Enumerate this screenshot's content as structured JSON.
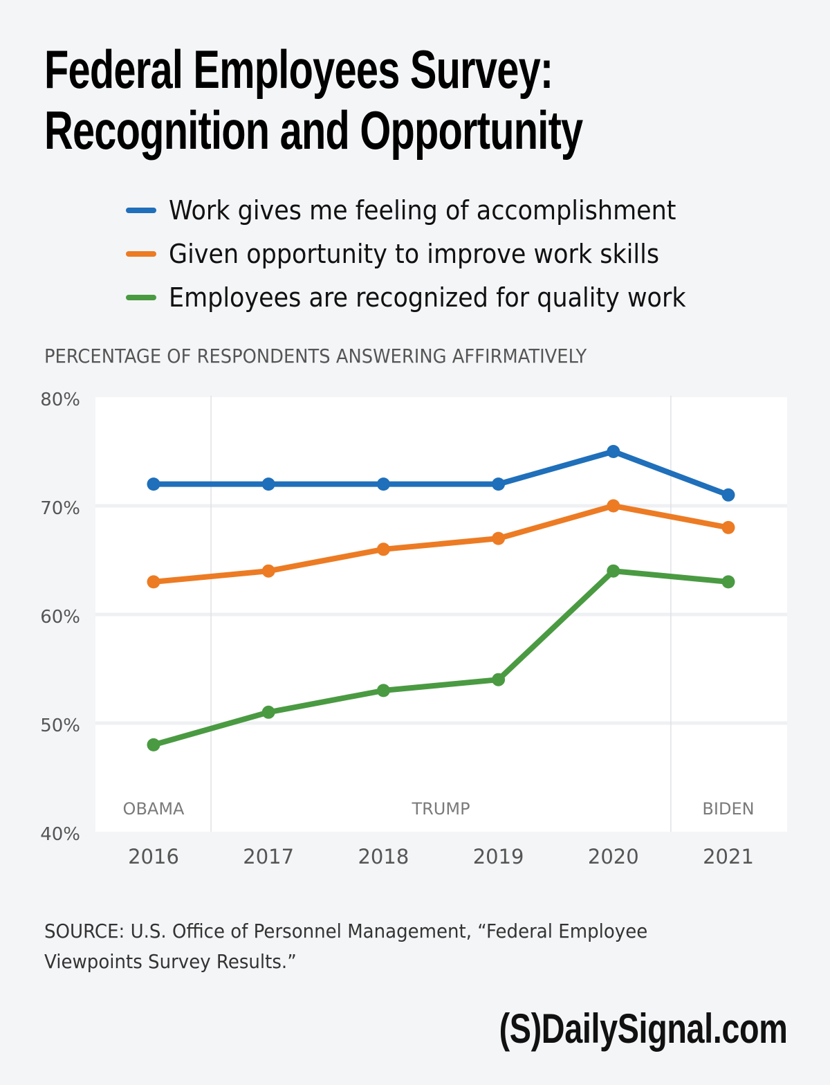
{
  "header": {
    "title_line1": "Federal Employees Survey:",
    "title_line2": "Recognition and Opportunity"
  },
  "legend": {
    "items": [
      {
        "label": "Work gives me feeling of accomplishment",
        "color": "#1f6fba"
      },
      {
        "label": "Given opportunity to improve work skills",
        "color": "#ec7b24"
      },
      {
        "label": "Employees are recognized for quality work",
        "color": "#4a9a42"
      }
    ]
  },
  "chart_data": {
    "type": "line",
    "title": "Federal Employees Survey: Recognition and Opportunity",
    "ylabel": "PERCENTAGE OF RESPONDENTS ANSWERING AFFIRMATIVELY",
    "xlabel": "",
    "categories": [
      "2016",
      "2017",
      "2018",
      "2019",
      "2020",
      "2021"
    ],
    "ylim": [
      40,
      80
    ],
    "yticks": [
      40,
      50,
      60,
      70,
      80
    ],
    "ytick_labels": [
      "40%",
      "50%",
      "60%",
      "70%",
      "80%"
    ],
    "grid": true,
    "legend_position": "top",
    "series": [
      {
        "name": "Work gives me feeling of accomplishment",
        "color": "#1f6fba",
        "values": [
          72,
          72,
          72,
          72,
          75,
          71
        ]
      },
      {
        "name": "Given opportunity to improve work skills",
        "color": "#ec7b24",
        "values": [
          63,
          64,
          66,
          67,
          70,
          68
        ]
      },
      {
        "name": "Employees are recognized for quality work",
        "color": "#4a9a42",
        "values": [
          48,
          51,
          53,
          54,
          64,
          63
        ]
      }
    ],
    "annotations": [
      {
        "label": "OBAMA",
        "years": [
          "2016"
        ]
      },
      {
        "label": "TRUMP",
        "years": [
          "2017",
          "2018",
          "2019",
          "2020"
        ]
      },
      {
        "label": "BIDEN",
        "years": [
          "2021"
        ]
      }
    ]
  },
  "footer": {
    "source": "SOURCE: U.S. Office of Personnel Management, “Federal Employee Viewpoints Survey Results.”",
    "logo_text": "(S)DailySignal.com"
  }
}
